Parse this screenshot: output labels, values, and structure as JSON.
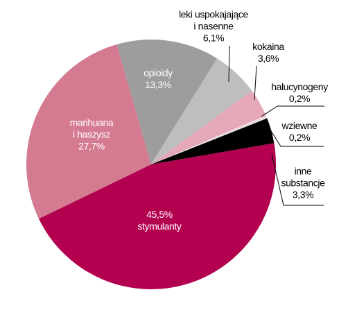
{
  "chart_data": {
    "type": "pie",
    "categories": [
      "opioidy",
      "leki uspokajające\ni nasenne",
      "kokaina",
      "halucynogeny",
      "wziewne",
      "inne\nsubstancje",
      "stymulanty",
      "marihuana\ni haszysz"
    ],
    "values": [
      13.3,
      6.1,
      3.6,
      0.2,
      0.2,
      3.3,
      45.5,
      27.7
    ],
    "value_labels": [
      "13,3%",
      "6,1%",
      "3,6%",
      "0,2%",
      "0,2%",
      "3,3%",
      "45,5%",
      "27,7%"
    ],
    "colors": [
      "#9d9d9d",
      "#bebebe",
      "#e5a8b8",
      "#f2d3db",
      "#e6e6e6",
      "#000000",
      "#b3004f",
      "#d47b91"
    ],
    "start_angle": -16
  }
}
